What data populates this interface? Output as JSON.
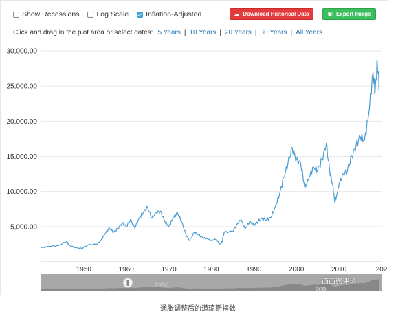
{
  "controls": {
    "show_recessions": {
      "label": "Show Recessions",
      "checked": false
    },
    "log_scale": {
      "label": "Log Scale",
      "checked": false
    },
    "inflation_adjusted": {
      "label": "Inflation-Adjusted",
      "checked": true
    },
    "download_label": "Download Historical Data",
    "export_label": "Export Image"
  },
  "date_selector": {
    "prompt": "Click and drag in the plot area or select dates:",
    "options": [
      "5 Years",
      "10 Years",
      "20 Years",
      "30 Years",
      "All Years"
    ]
  },
  "chart_data": {
    "type": "line",
    "title": "",
    "xlabel": "",
    "ylabel": "",
    "xlim": [
      1940,
      2020
    ],
    "ylim": [
      0,
      30000
    ],
    "y_ticks": [
      "5,000.00",
      "10,000.00",
      "15,000.00",
      "20,000.00",
      "25,000.00",
      "30,000.00"
    ],
    "x_ticks": [
      "1950",
      "1960",
      "1970",
      "1980",
      "1990",
      "2000",
      "2010",
      "202"
    ],
    "grid": true,
    "series_color": "#4a9bd1",
    "series": [
      {
        "x": [
          1940,
          1942,
          1944,
          1946,
          1946.5,
          1948,
          1949.5,
          1951,
          1953,
          1954,
          1955,
          1956,
          1957,
          1958,
          1959,
          1960,
          1961,
          1962,
          1963,
          1964,
          1965,
          1966,
          1967,
          1968,
          1969,
          1970,
          1971,
          1972,
          1973,
          1974,
          1974.9,
          1976,
          1977,
          1978,
          1979,
          1980,
          1981,
          1982,
          1982.5,
          1983,
          1985,
          1986,
          1987,
          1987.9,
          1989,
          1990,
          1991,
          1992,
          1993,
          1994,
          1995,
          1996,
          1997,
          1998,
          1999,
          2000,
          2001,
          2002,
          2003,
          2004,
          2005,
          2006,
          2007,
          2007.8,
          2008.5,
          2009,
          2009.5,
          2010,
          2011,
          2012,
          2013,
          2014,
          2015,
          2016,
          2017,
          2018,
          2018.5,
          2019,
          2019.5
        ],
        "y": [
          2000,
          2200,
          2300,
          2900,
          2400,
          2000,
          1900,
          2400,
          2500,
          3000,
          4000,
          4800,
          4200,
          4700,
          5500,
          5000,
          6000,
          4800,
          6200,
          7000,
          7800,
          6200,
          7000,
          7200,
          5800,
          5000,
          6200,
          7000,
          5700,
          3900,
          3000,
          4200,
          3900,
          3400,
          3300,
          3000,
          3200,
          2500,
          2800,
          4200,
          4300,
          5300,
          6000,
          4700,
          5700,
          5200,
          5800,
          6100,
          6000,
          6300,
          7800,
          9500,
          12000,
          14000,
          16200,
          14500,
          14000,
          10500,
          12000,
          13500,
          13000,
          14500,
          16800,
          13000,
          11000,
          8500,
          9500,
          11000,
          12500,
          13000,
          15000,
          16500,
          17800,
          17300,
          21000,
          27000,
          24000,
          28500,
          24500
        ]
      }
    ]
  },
  "navigator": {
    "label": "1950",
    "label2": "200"
  },
  "caption": "通胀调整后的道琼斯指数",
  "watermark": "西西弗评论"
}
